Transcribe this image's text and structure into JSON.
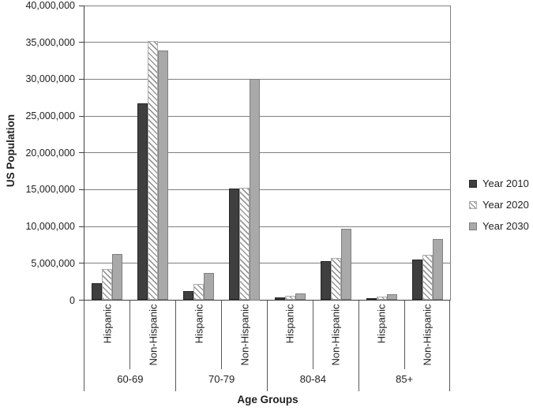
{
  "chart_data": {
    "type": "bar",
    "title": "",
    "xlabel": "Age Groups",
    "ylabel": "US Population",
    "ylim": [
      0,
      40000000
    ],
    "y_tick_step": 5000000,
    "y_tick_labels": [
      "0",
      "5,000,000",
      "10,000,000",
      "15,000,000",
      "20,000,000",
      "25,000,000",
      "30,000,000",
      "35,000,000",
      "40,000,000"
    ],
    "grid": true,
    "legend_position": "right",
    "age_groups": [
      "60-69",
      "70-79",
      "80-84",
      "85+"
    ],
    "subgroups": [
      "Hispanic",
      "Non-Hispanic"
    ],
    "categories": [
      {
        "group": "60-69",
        "sub": "Hispanic"
      },
      {
        "group": "60-69",
        "sub": "Non-Hispanic"
      },
      {
        "group": "70-79",
        "sub": "Hispanic"
      },
      {
        "group": "70-79",
        "sub": "Non-Hispanic"
      },
      {
        "group": "80-84",
        "sub": "Hispanic"
      },
      {
        "group": "80-84",
        "sub": "Non-Hispanic"
      },
      {
        "group": "85+",
        "sub": "Hispanic"
      },
      {
        "group": "85+",
        "sub": "Non-Hispanic"
      }
    ],
    "series": [
      {
        "name": "Year 2010",
        "fill": "#3f3f3f",
        "border": "#262626",
        "hatch": false,
        "values": [
          2300000,
          26700000,
          1200000,
          15200000,
          350000,
          5300000,
          300000,
          5500000
        ]
      },
      {
        "name": "Year 2020",
        "fill": "#999999",
        "bg": "#ffffff",
        "border": "#ababab",
        "hatch": true,
        "values": [
          4200000,
          35200000,
          2200000,
          15300000,
          550000,
          5700000,
          450000,
          6200000
        ]
      },
      {
        "name": "Year 2030",
        "fill": "#a9a9a9",
        "border": "#808080",
        "hatch": false,
        "values": [
          6300000,
          33900000,
          3700000,
          30000000,
          950000,
          9700000,
          750000,
          8300000
        ]
      }
    ],
    "colors": {
      "gridline": "#7f7f7f",
      "axis": "#404040",
      "category_divider": "#595959",
      "text": "#1f1f1f",
      "background": "#ffffff"
    }
  }
}
